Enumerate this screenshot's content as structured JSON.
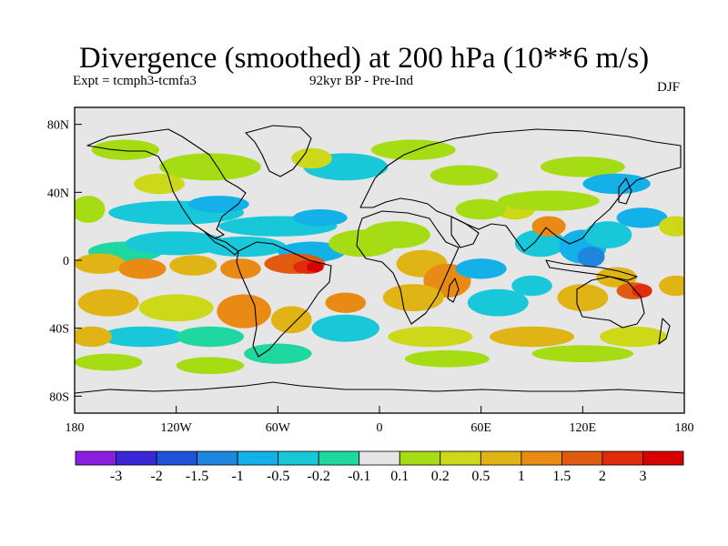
{
  "title": "Divergence (smoothed) at 200 hPa (10**6 m/s)",
  "experiment": "Expt = tcmph3-tcmfa3",
  "period": "92kyr BP - Pre-Ind",
  "season": "DJF",
  "axes": {
    "lat_ticks": [
      "80N",
      "40N",
      "0",
      "40S",
      "80S"
    ],
    "lon_ticks": [
      "180",
      "120W",
      "60W",
      "0",
      "60E",
      "120E",
      "180"
    ]
  },
  "colorbar": {
    "labels": [
      "-3",
      "-2",
      "-1.5",
      "-1",
      "-0.5",
      "-0.2",
      "-0.1",
      "0.1",
      "0.2",
      "0.5",
      "1",
      "1.5",
      "2",
      "3"
    ],
    "colors": [
      "#8a1ee0",
      "#3a28d8",
      "#1f52d8",
      "#1f86e0",
      "#14b0e8",
      "#18c8d8",
      "#1ed8a0",
      "#e6e6e6",
      "#a6dc14",
      "#cdd818",
      "#e0b414",
      "#e88a14",
      "#e05a10",
      "#e02c0c",
      "#d80000"
    ]
  },
  "chart_data": {
    "type": "heatmap",
    "x_range": [
      -180,
      180
    ],
    "y_range": [
      -90,
      90
    ],
    "contour_levels": [
      -3,
      -2,
      -1.5,
      -1,
      -0.5,
      -0.2,
      -0.1,
      0.1,
      0.2,
      0.5,
      1,
      1.5,
      2,
      3
    ]
  }
}
